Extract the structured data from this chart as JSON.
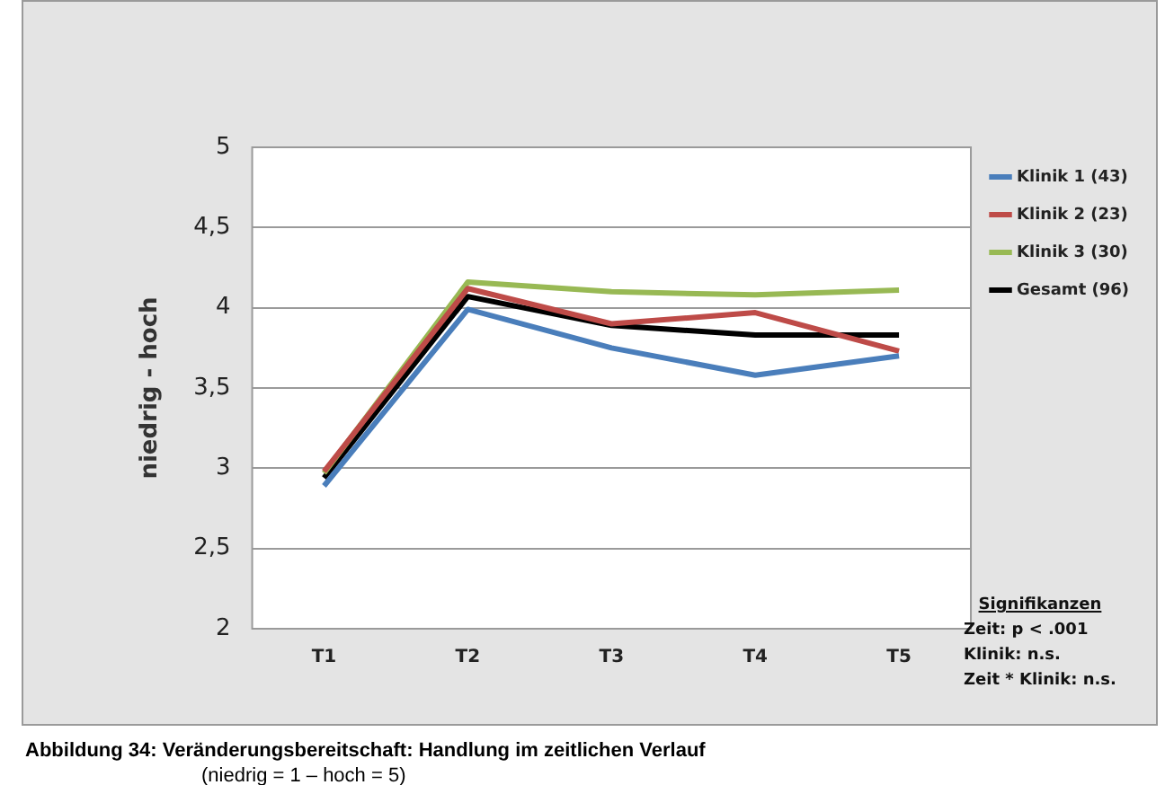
{
  "chart_data": {
    "type": "line",
    "title": "Abbildung 34: Veränderungsbereitschaft: Handlung im zeitlichen Verlauf",
    "subtitle": "(niedrig = 1 – hoch = 5)",
    "ylabel": "niedrig - hoch",
    "categories": [
      "T1",
      "T2",
      "T3",
      "T4",
      "T5"
    ],
    "series": [
      {
        "name": "Klinik 1 (43)",
        "color": "#4a7ebb",
        "values": [
          2.89,
          3.99,
          3.75,
          3.58,
          3.7
        ]
      },
      {
        "name": "Klinik 2 (23)",
        "color": "#be4b48",
        "values": [
          2.98,
          4.12,
          3.9,
          3.97,
          3.73
        ]
      },
      {
        "name": "Klinik 3 (30)",
        "color": "#98b954",
        "values": [
          2.97,
          4.16,
          4.1,
          4.08,
          4.11
        ]
      },
      {
        "name": "Gesamt (96)",
        "color": "#000000",
        "values": [
          2.94,
          4.07,
          3.89,
          3.83,
          3.83
        ]
      }
    ],
    "ylim": [
      2,
      5
    ],
    "yticks": [
      2,
      {
        "value": 2.5,
        "label": "2,5"
      },
      3,
      {
        "value": 3.5,
        "label": "3,5"
      },
      4,
      {
        "value": 4.5,
        "label": "4,5"
      },
      5
    ],
    "grid": "y",
    "legend": "right",
    "marker": "none",
    "line_style": "solid",
    "annotations": [
      "Signifikanzen",
      "Zeit: p  < .001",
      "Klinik:  n.s.",
      "Zeit * Klinik: n.s."
    ]
  }
}
